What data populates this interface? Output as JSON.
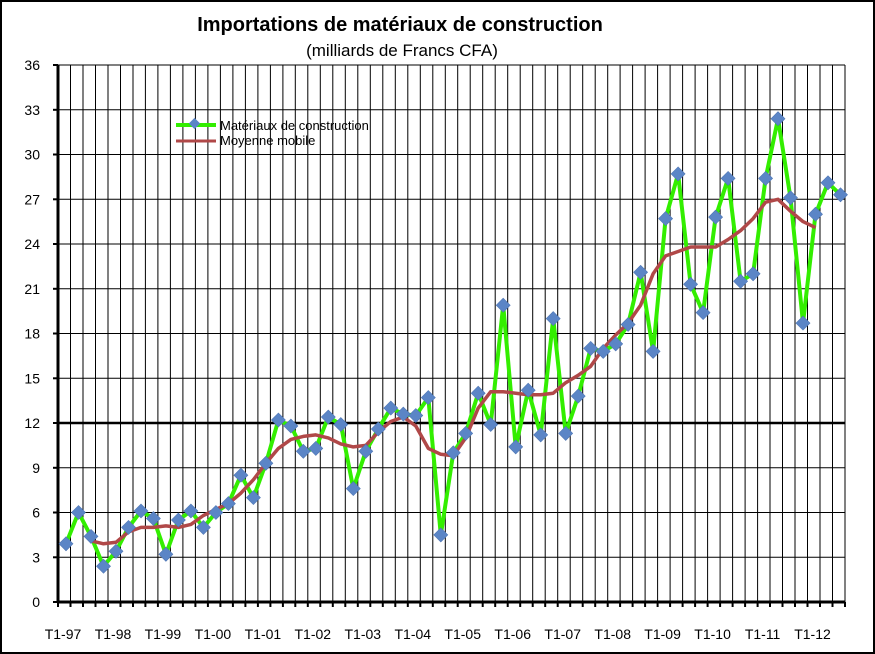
{
  "chart_data": {
    "type": "line",
    "title": "Importations de matériaux de construction",
    "subtitle": "(milliards de Francs CFA)",
    "xlabel": "",
    "ylabel": "",
    "ylim": [
      0,
      36
    ],
    "yticks": [
      0,
      3,
      6,
      9,
      12,
      15,
      18,
      21,
      24,
      27,
      30,
      33,
      36
    ],
    "xticks": [
      "T1-97",
      "T1-98",
      "T1-99",
      "T1-00",
      "T1-01",
      "T1-02",
      "T1-03",
      "T1-04",
      "T1-05",
      "T1-06",
      "T1-07",
      "T1-08",
      "T1-09",
      "T1-10",
      "T1-11",
      "T1-12"
    ],
    "grid": "vertical lines at each quarter, horizontal lines every 3 units, bold line at 12",
    "legend_position": "top-left",
    "colors": {
      "series1_line": "#33ee00",
      "series1_marker": "#5b85c6",
      "series2_line": "#b04848"
    },
    "series": [
      {
        "name": "Matériaux de construction",
        "values": [
          3.9,
          6.0,
          4.4,
          2.4,
          3.4,
          5.0,
          6.1,
          5.6,
          3.2,
          5.5,
          6.1,
          5.0,
          6.0,
          6.6,
          8.5,
          7.0,
          9.3,
          12.2,
          11.8,
          10.1,
          10.3,
          12.4,
          11.9,
          7.6,
          10.1,
          11.6,
          13.0,
          12.6,
          12.5,
          13.7,
          4.5,
          10.0,
          11.3,
          14.0,
          11.9,
          19.9,
          10.4,
          14.2,
          11.2,
          19.0,
          11.3,
          13.8,
          17.0,
          16.8,
          17.3,
          18.6,
          22.1,
          16.8,
          25.7,
          28.7,
          21.3,
          19.4,
          25.8,
          28.4,
          21.5,
          22.0,
          28.4,
          32.4,
          27.1,
          18.7,
          26.0,
          28.1,
          27.3
        ]
      },
      {
        "name": "Moyenne mobile",
        "values": [
          null,
          null,
          4.1,
          3.9,
          4.0,
          4.7,
          5.0,
          5.0,
          5.1,
          5.0,
          5.2,
          5.8,
          6.2,
          6.6,
          7.3,
          8.2,
          9.3,
          10.3,
          10.9,
          11.1,
          11.2,
          11.0,
          10.6,
          10.4,
          10.5,
          11.4,
          12.1,
          12.4,
          11.8,
          10.3,
          9.9,
          9.8,
          11.0,
          13.0,
          14.1,
          14.1,
          14.0,
          13.9,
          13.9,
          14.0,
          14.7,
          15.2,
          15.8,
          17.0,
          17.9,
          18.7,
          19.9,
          22.0,
          23.2,
          23.5,
          23.8,
          23.8,
          23.8,
          24.3,
          24.9,
          25.7,
          26.8,
          27.0,
          26.2,
          25.5,
          25.1,
          null,
          null
        ]
      }
    ]
  }
}
